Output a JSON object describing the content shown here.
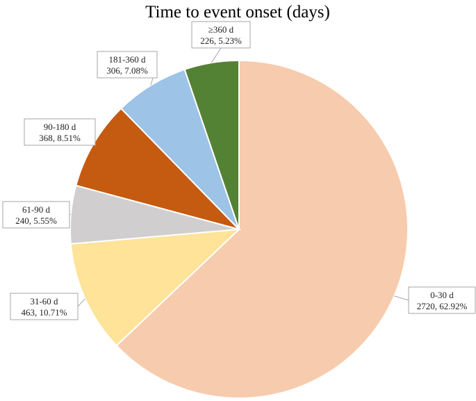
{
  "chart_data": {
    "type": "pie",
    "title": "Time to event onset (days)",
    "slices": [
      {
        "category": "0-30 d",
        "value": 2720,
        "percent": "62.92%",
        "color": "#f7cbad"
      },
      {
        "category": "31-60 d",
        "value": 463,
        "percent": "10.71%",
        "color": "#fee398"
      },
      {
        "category": "61-90 d",
        "value": 240,
        "percent": "5.55%",
        "color": "#d0cece"
      },
      {
        "category": "90-180 d",
        "value": 368,
        "percent": "8.51%",
        "color": "#c55a11"
      },
      {
        "category": "181-360 d",
        "value": 306,
        "percent": "7.08%",
        "color": "#9dc3e6"
      },
      {
        "category": "≥360 d",
        "value": 226,
        "percent": "5.23%",
        "color": "#548235"
      }
    ],
    "start_angle_deg": 0,
    "direction": "clockwise",
    "data_labels": "category, value, percent",
    "legend": "none"
  }
}
